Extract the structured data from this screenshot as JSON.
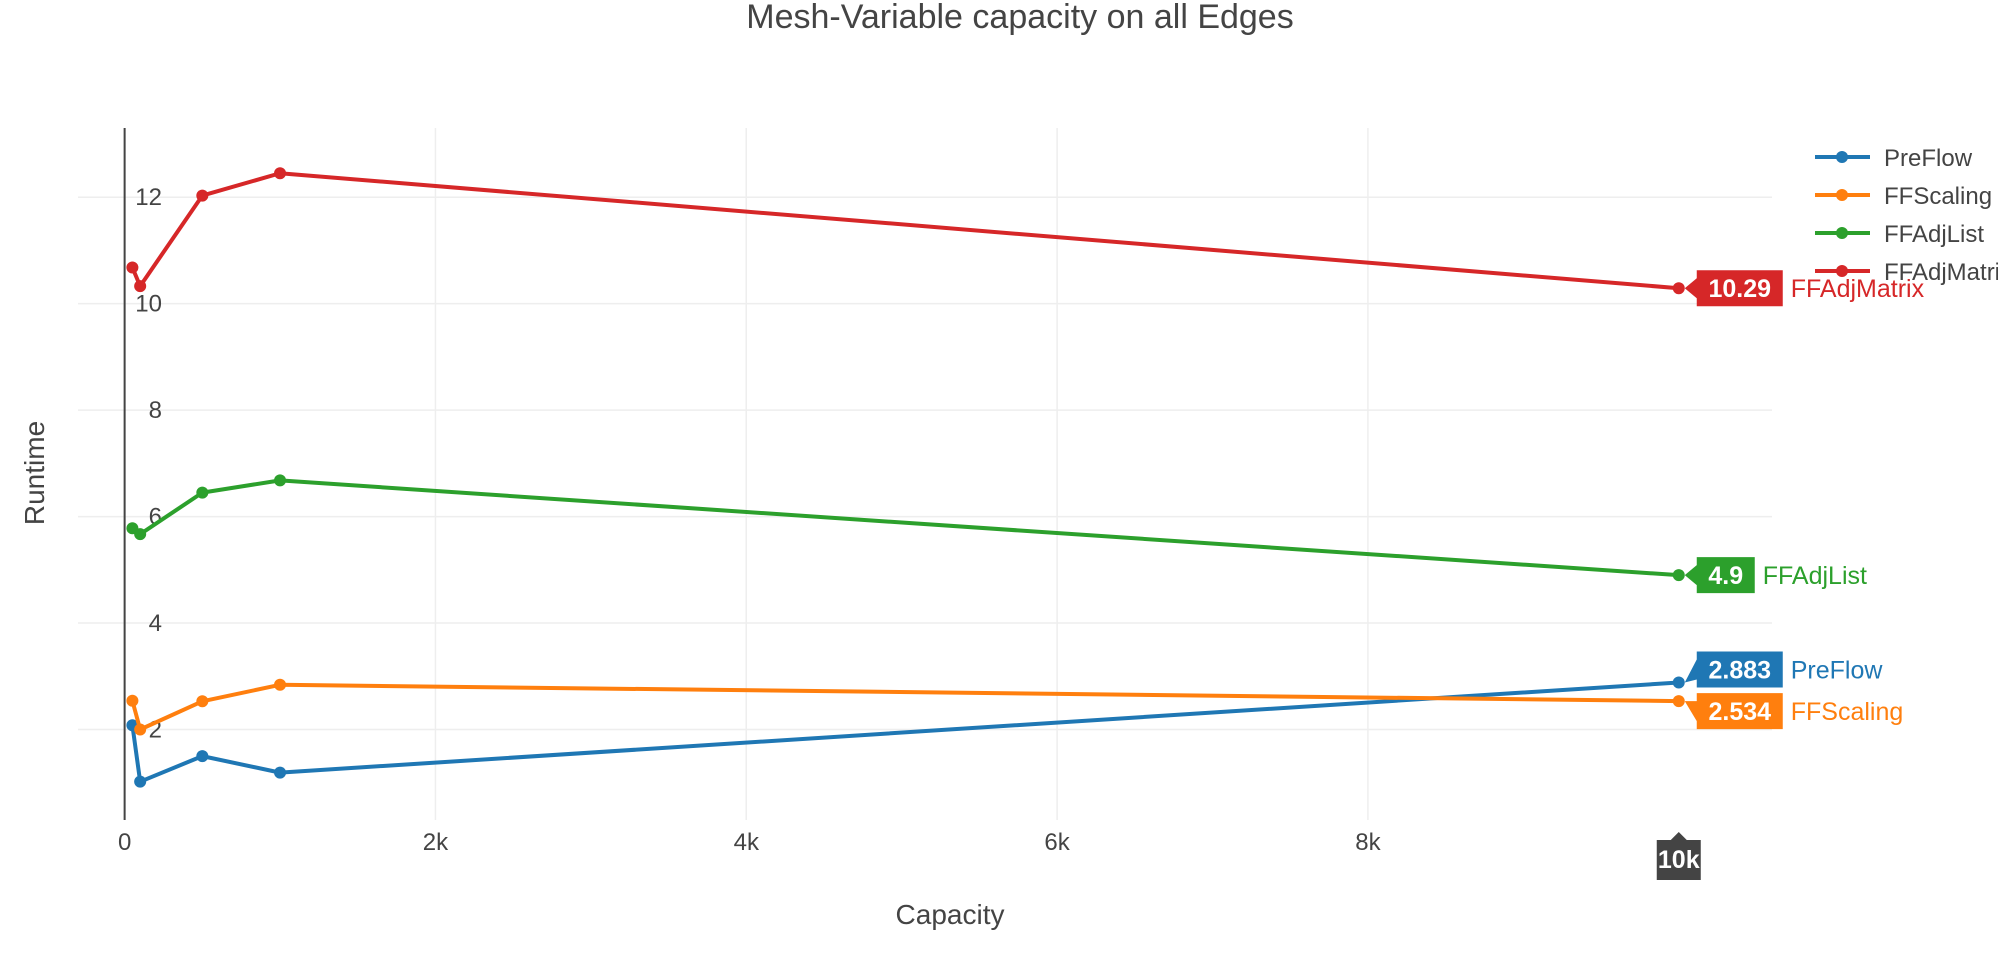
{
  "chart_data": {
    "type": "line",
    "title": "Mesh-Variable capacity on all Edges",
    "xlabel": "Capacity",
    "ylabel": "Runtime",
    "xlim": [
      -300,
      10600
    ],
    "ylim": [
      0.3,
      13.3
    ],
    "x_ticks": [
      0,
      2000,
      4000,
      6000,
      8000
    ],
    "x_tick_labels": [
      "0",
      "2k",
      "4k",
      "6k",
      "8k"
    ],
    "y_ticks": [
      2,
      4,
      6,
      8,
      10,
      12
    ],
    "y_tick_labels": [
      "2",
      "4",
      "6",
      "8",
      "10",
      "12"
    ],
    "grid": true,
    "legend_position": "top-right",
    "x": [
      50,
      100,
      500,
      1000,
      10000
    ],
    "series": [
      {
        "name": "PreFlow",
        "color": "#1f77b4",
        "values": [
          2.08,
          1.02,
          1.5,
          1.19,
          2.883
        ]
      },
      {
        "name": "FFScaling",
        "color": "#ff7f0e",
        "values": [
          2.54,
          2.0,
          2.53,
          2.84,
          2.534
        ]
      },
      {
        "name": "FFAdjList",
        "color": "#2ca02c",
        "values": [
          5.78,
          5.67,
          6.45,
          6.68,
          4.9
        ]
      },
      {
        "name": "FFAdjMatrix",
        "color": "#d62728",
        "values": [
          10.68,
          10.33,
          12.03,
          12.45,
          10.29
        ]
      }
    ],
    "hover": {
      "x_label": "10k",
      "point_index": 4,
      "labels": [
        {
          "series": "FFAdjMatrix",
          "value_text": "10.29",
          "name_text": "FFAdjMatrix"
        },
        {
          "series": "FFAdjList",
          "value_text": "4.9",
          "name_text": "FFAdjList"
        },
        {
          "series": "PreFlow",
          "value_text": "2.883",
          "name_text": "PreFlow"
        },
        {
          "series": "FFScaling",
          "value_text": "2.534",
          "name_text": "FFScaling"
        }
      ]
    }
  }
}
